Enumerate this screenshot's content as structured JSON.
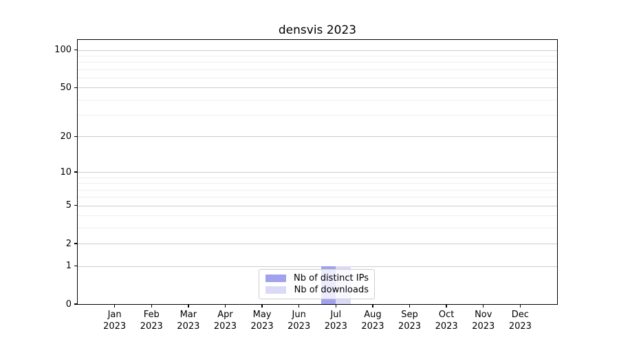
{
  "title": "densvis 2023",
  "chart_data": {
    "type": "bar",
    "title": "densvis 2023",
    "categories": [
      "Jan",
      "Feb",
      "Mar",
      "Apr",
      "May",
      "Jun",
      "Jul",
      "Aug",
      "Sep",
      "Oct",
      "Nov",
      "Dec"
    ],
    "x_year": "2023",
    "series": [
      {
        "name": "Nb of distinct IPs",
        "color": "#a1a1ed",
        "values": [
          0,
          0,
          0,
          0,
          0,
          0,
          1,
          0,
          0,
          0,
          0,
          0
        ]
      },
      {
        "name": "Nb of downloads",
        "color": "#dadaf8",
        "values": [
          0,
          0,
          0,
          0,
          0,
          0,
          1,
          0,
          0,
          0,
          0,
          0
        ]
      }
    ],
    "xlabel": "",
    "ylabel": "",
    "y_axis": {
      "scale": "log1p",
      "ticks": [
        0,
        1,
        2,
        5,
        10,
        20,
        50,
        100
      ],
      "minor_gridlines": [
        3,
        4,
        6,
        7,
        8,
        9,
        30,
        40,
        60,
        70,
        80,
        90
      ],
      "top_value": 120.5
    },
    "grid": true,
    "legend_position": "lower center"
  },
  "colors": {
    "grid_major": "#cccccc",
    "grid_minor": "#eeeeee",
    "spine": "#000000",
    "background": "#ffffff"
  }
}
